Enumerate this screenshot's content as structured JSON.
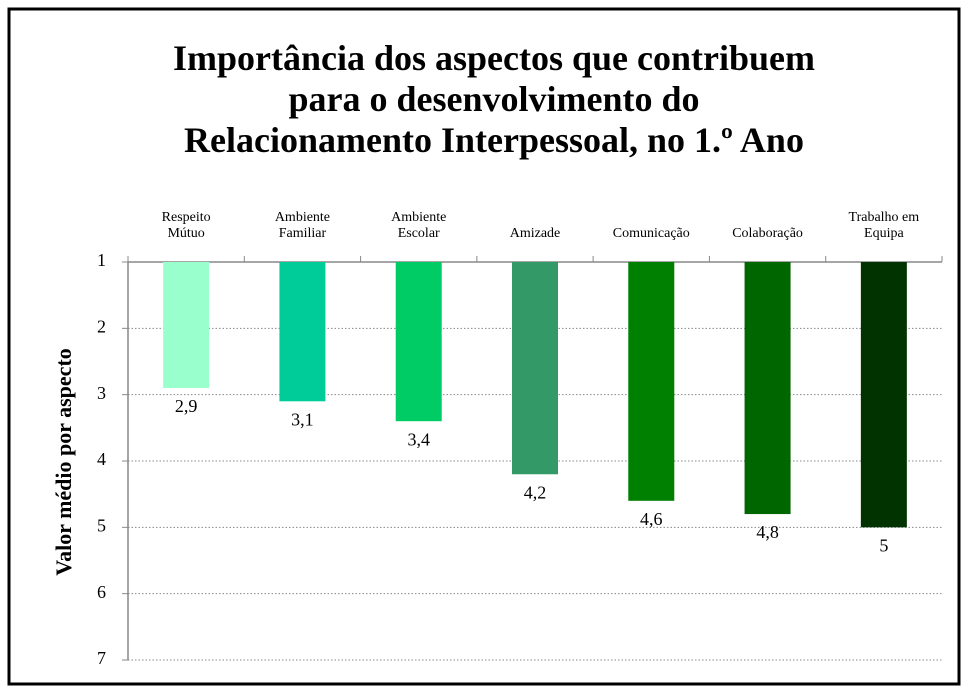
{
  "chart_data": {
    "type": "bar",
    "title": "Importância dos aspectos que contribuem\npara o desenvolvimento do\nRelacionamento Interpessoal, no 1.º Ano",
    "y_label": "Valor médio por aspecto",
    "categories": [
      "Respeito\nMútuo",
      "Ambiente\nFamiliar",
      "Ambiente\nEscolar",
      "Amizade",
      "Comunicação",
      "Colaboração",
      "Trabalho em\nEquipa"
    ],
    "values": [
      2.9,
      3.1,
      3.4,
      4.2,
      4.6,
      4.8,
      5
    ],
    "value_labels": [
      "2,9",
      "3,1",
      "3,4",
      "4,2",
      "4,6",
      "4,8",
      "5"
    ],
    "colors": [
      "#99ffcc",
      "#00cc99",
      "#00cc66",
      "#339966",
      "#008000",
      "#006600",
      "#003300"
    ],
    "ylim": [
      1,
      7
    ],
    "yticks": [
      1,
      2,
      3,
      4,
      5,
      6,
      7
    ],
    "y_inverted": true,
    "grid": true
  }
}
